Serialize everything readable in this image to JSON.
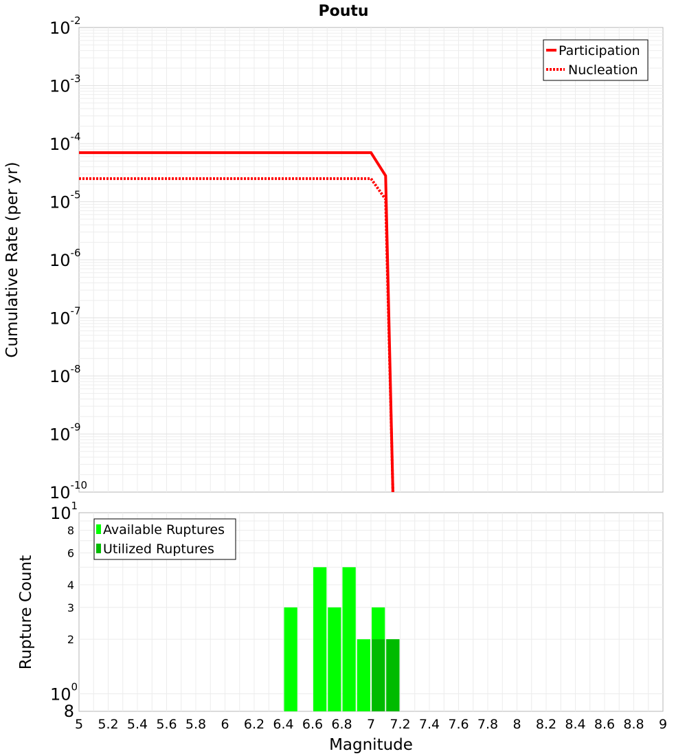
{
  "chart_data": [
    {
      "type": "line",
      "title": "Poutu",
      "xlabel": "",
      "ylabel": "Cumulative Rate (per yr)",
      "xlim": [
        5,
        9
      ],
      "ylim": [
        1e-10,
        0.01
      ],
      "yscale": "log",
      "y_tick_exponents": [
        "-2",
        "-3",
        "-4",
        "-5",
        "-6",
        "-7",
        "-8",
        "-9",
        "-10"
      ],
      "y_tick_base": "10",
      "grid": true,
      "legend_position": "top-right",
      "series": [
        {
          "name": "Participation",
          "style": "solid",
          "color": "#ff0000",
          "x": [
            5.0,
            7.0,
            7.1,
            7.15
          ],
          "y": [
            7e-05,
            7e-05,
            2.8e-05,
            1e-10
          ]
        },
        {
          "name": "Nucleation",
          "style": "dotted",
          "color": "#ff0000",
          "x": [
            5.0,
            7.0,
            7.1,
            7.15
          ],
          "y": [
            2.5e-05,
            2.5e-05,
            1.1e-05,
            1e-10
          ]
        }
      ]
    },
    {
      "type": "bar",
      "xlabel": "Magnitude",
      "ylabel": "Rupture Count",
      "xlim": [
        5,
        9
      ],
      "ylim": [
        0.8,
        10
      ],
      "yscale": "log",
      "x_ticks": [
        "5",
        "5.2",
        "5.4",
        "5.6",
        "5.8",
        "6",
        "6.2",
        "6.4",
        "6.6",
        "6.8",
        "7",
        "7.2",
        "7.4",
        "7.6",
        "7.8",
        "8",
        "8.2",
        "8.4",
        "8.6",
        "8.8",
        "9"
      ],
      "y_ticks": [
        "8",
        "6",
        "4",
        "3",
        "2"
      ],
      "y_tick_labels": {
        "top_base": "10",
        "top_exp": "1",
        "mid_base": "10",
        "mid_exp": "0",
        "bottom": "8"
      },
      "grid": true,
      "legend_position": "top-left",
      "bin_width": 0.1,
      "series": [
        {
          "name": "Available Ruptures",
          "color": "#00ff00",
          "x": [
            6.45,
            6.65,
            6.75,
            6.85,
            6.95,
            7.05,
            7.15
          ],
          "values": [
            3,
            5,
            3,
            5,
            2,
            3,
            2
          ]
        },
        {
          "name": "Utilized Ruptures",
          "color": "#00bb00",
          "x": [
            7.05,
            7.15
          ],
          "values": [
            2,
            2
          ]
        }
      ]
    }
  ]
}
